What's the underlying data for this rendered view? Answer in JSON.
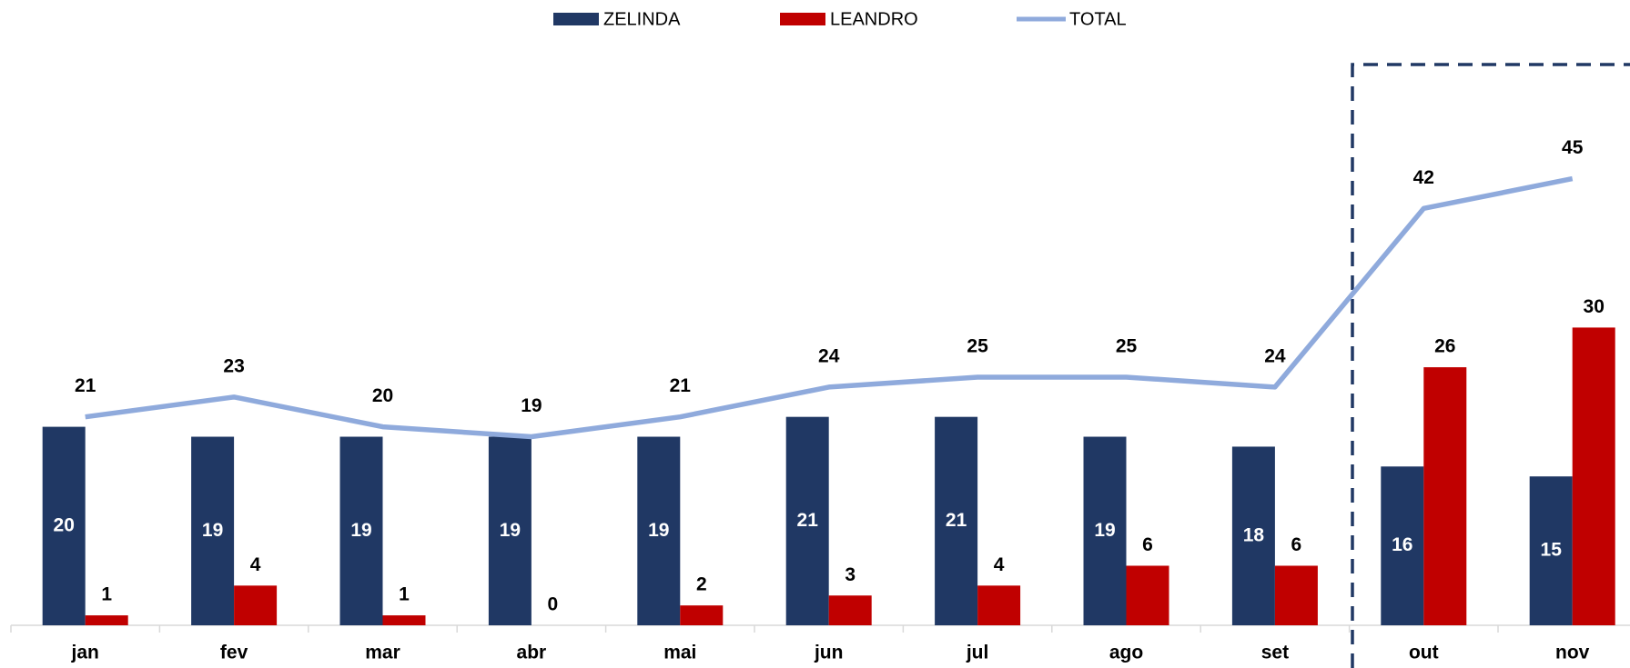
{
  "chart_data": {
    "type": "bar",
    "categories": [
      "jan",
      "fev",
      "mar",
      "abr",
      "mai",
      "jun",
      "jul",
      "ago",
      "set",
      "out",
      "nov"
    ],
    "series": [
      {
        "name": "ZELINDA",
        "type": "bar",
        "color": "#203864",
        "values": [
          20,
          19,
          19,
          19,
          19,
          21,
          21,
          19,
          18,
          16,
          15
        ]
      },
      {
        "name": "LEANDRO",
        "type": "bar",
        "color": "#c00000",
        "values": [
          1,
          4,
          1,
          0,
          2,
          3,
          4,
          6,
          6,
          26,
          30
        ]
      },
      {
        "name": "TOTAL",
        "type": "line",
        "color": "#8faadc",
        "values": [
          21,
          23,
          20,
          19,
          21,
          24,
          25,
          25,
          24,
          42,
          45
        ]
      }
    ]
  }
}
